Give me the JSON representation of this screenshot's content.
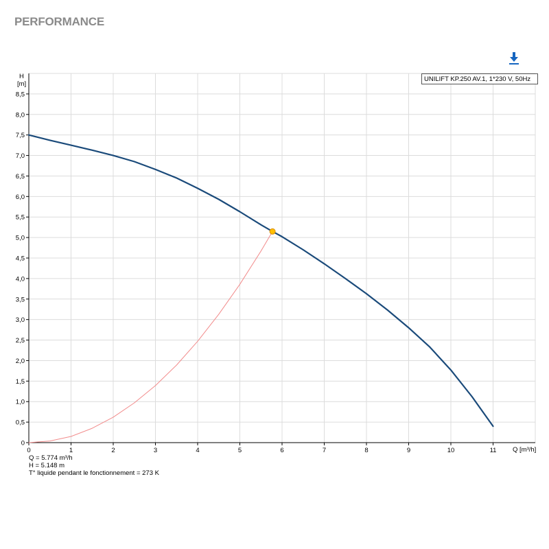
{
  "header": {
    "title": "PERFORMANCE"
  },
  "toolbar": {
    "download_icon": "download-icon",
    "accent": "#1565c0"
  },
  "chart_data": {
    "type": "line",
    "ylabel_top": "H",
    "yunit": "[m]",
    "xlabel": "Q [m³/h]",
    "xlim": [
      0,
      12
    ],
    "ylim": [
      0,
      9
    ],
    "x_ticks": [
      "0",
      "1",
      "2",
      "3",
      "4",
      "5",
      "6",
      "7",
      "8",
      "9",
      "10",
      "11"
    ],
    "y_ticks": [
      "0",
      "0,5",
      "1,0",
      "1,5",
      "2,0",
      "2,5",
      "3,0",
      "3,5",
      "4,0",
      "4,5",
      "5,0",
      "5,5",
      "6,0",
      "6,5",
      "7,0",
      "7,5",
      "8,0",
      "8,5"
    ],
    "grid": true,
    "legend_position": "top-right",
    "legend": "UNILIFT KP.250 AV.1, 1*230 V, 50Hz",
    "series": [
      {
        "name": "UNILIFT KP.250 AV.1, 1*230 V, 50Hz",
        "color": "#1a4a7a",
        "x": [
          0,
          0.5,
          1,
          1.5,
          2,
          2.5,
          3,
          3.5,
          4,
          4.5,
          5,
          5.5,
          5.774,
          6,
          6.5,
          7,
          7.5,
          8,
          8.5,
          9,
          9.5,
          10,
          10.5,
          11
        ],
        "y": [
          7.5,
          7.37,
          7.25,
          7.13,
          7.0,
          6.85,
          6.66,
          6.45,
          6.2,
          5.93,
          5.63,
          5.31,
          5.148,
          5.02,
          4.7,
          4.36,
          4.0,
          3.63,
          3.23,
          2.8,
          2.33,
          1.77,
          1.12,
          0.4
        ]
      },
      {
        "color": "#f28b8b",
        "x": [
          0,
          0.5,
          1,
          1.5,
          2,
          2.5,
          3,
          3.5,
          4,
          4.5,
          5,
          5.5,
          5.774
        ],
        "y": [
          0,
          0.04,
          0.15,
          0.35,
          0.62,
          0.97,
          1.39,
          1.89,
          2.47,
          3.13,
          3.86,
          4.67,
          5.148
        ]
      }
    ],
    "operating_point": {
      "x": 5.774,
      "y": 5.148,
      "color": "#ffc000"
    }
  },
  "readouts": {
    "q": "Q = 5.774 m³/h",
    "h": "H = 5.148 m",
    "temp": "T° liquide pendant le fonctionnement = 273 K"
  }
}
